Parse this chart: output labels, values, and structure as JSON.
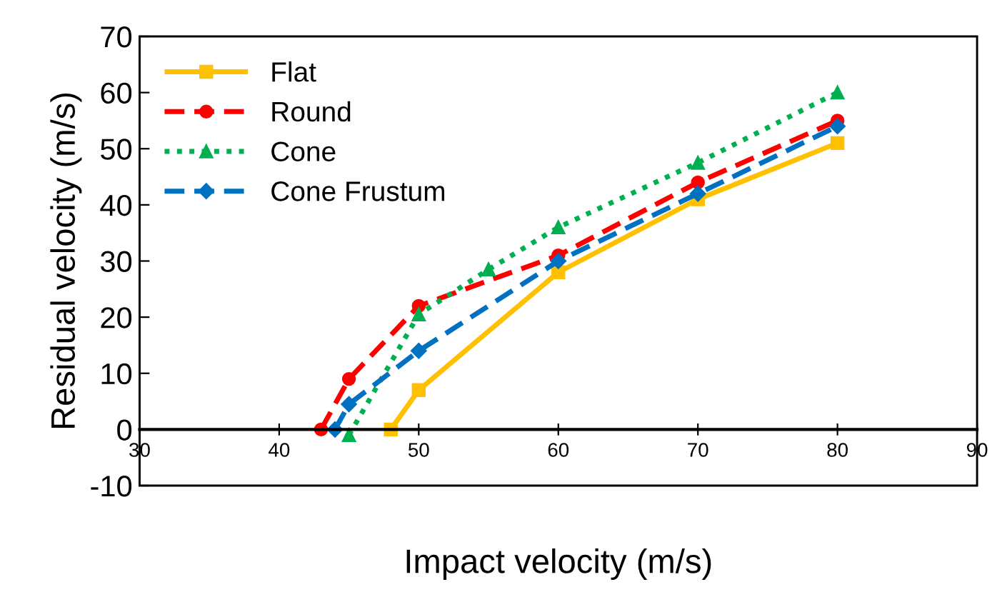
{
  "chart_data": {
    "type": "line",
    "xlabel": "Impact velocity (m/s)",
    "ylabel": "Residual velocity (m/s)",
    "xlim": [
      30,
      90
    ],
    "xticks": [
      30,
      40,
      50,
      60,
      70,
      80,
      90
    ],
    "ylim": [
      -10,
      70
    ],
    "yticks": [
      -10,
      0,
      10,
      20,
      30,
      40,
      50,
      60,
      70
    ],
    "grid": false,
    "legend": "top left",
    "series": [
      {
        "name": "Flat",
        "color": "#ffc000",
        "x": [
          48,
          50,
          60,
          70,
          80
        ],
        "values": [
          0,
          7,
          28,
          41,
          51
        ],
        "marker": "square",
        "line_style": "solid"
      },
      {
        "name": "Round",
        "color": "#ff0000",
        "x": [
          43,
          45,
          50,
          60,
          70,
          80
        ],
        "values": [
          0,
          9,
          22,
          31,
          44,
          55
        ],
        "marker": "circle",
        "line_style": "dashed"
      },
      {
        "name": "Cone",
        "color": "#00b050",
        "x": [
          45,
          50,
          55,
          60,
          70,
          80
        ],
        "values": [
          -1,
          20.5,
          28.5,
          36,
          47.5,
          60
        ],
        "marker": "triangle",
        "line_style": "dotted"
      },
      {
        "name": "Cone Frustum",
        "color": "#0070c0",
        "x": [
          44,
          45,
          50,
          60,
          70,
          80
        ],
        "values": [
          0,
          4.5,
          14,
          30,
          42,
          54
        ],
        "marker": "diamond",
        "line_style": "dashed"
      }
    ]
  }
}
